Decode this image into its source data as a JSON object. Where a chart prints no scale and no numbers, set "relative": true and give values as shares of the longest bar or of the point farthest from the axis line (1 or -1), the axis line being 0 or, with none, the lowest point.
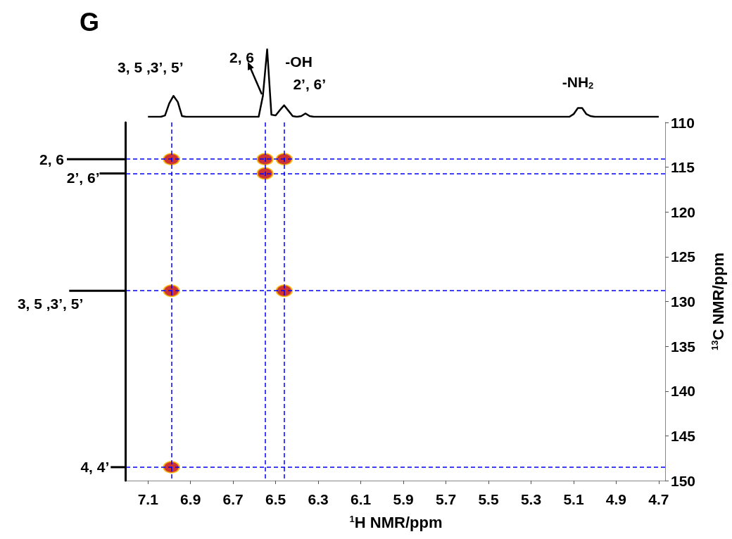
{
  "chart_data": [
    {
      "type": "line",
      "title": "G",
      "relative": true,
      "color": "#000000",
      "marker": "none",
      "categories": [
        null,
        null,
        null,
        null,
        null,
        null,
        null,
        null,
        null,
        null,
        null,
        null,
        null,
        null,
        null,
        null,
        null,
        null,
        null,
        null,
        null,
        null,
        null,
        null,
        null,
        null,
        null,
        null,
        null,
        null,
        null,
        null,
        null,
        null,
        null,
        null,
        null,
        null,
        null,
        null,
        null,
        null,
        null,
        null,
        null,
        null,
        null,
        null,
        null,
        null,
        null,
        null,
        null,
        null,
        null,
        null,
        null,
        null,
        null,
        null,
        null,
        null,
        null,
        null,
        null,
        null,
        null,
        null,
        null,
        null,
        null,
        null,
        null,
        null,
        null,
        null,
        null,
        null,
        null,
        null,
        null,
        null,
        null,
        null,
        null,
        null,
        null,
        null,
        null,
        null,
        null,
        null,
        null,
        null,
        null,
        null,
        null,
        null,
        null,
        null,
        null,
        null,
        null,
        null,
        null,
        null,
        null,
        null,
        null,
        null,
        null,
        null,
        null,
        null,
        null,
        null,
        null,
        null,
        null,
        null,
        null
      ],
      "values": [
        0,
        0,
        0,
        0,
        0.02,
        0.2,
        0.31,
        0.22,
        0.01,
        0,
        0,
        0,
        0,
        0,
        0,
        0,
        0,
        0,
        0,
        0,
        0,
        0,
        0,
        0,
        0,
        0,
        0,
        0.31,
        1,
        0.03,
        0.02,
        0.1,
        0.17,
        0.09,
        0.01,
        0,
        0.01,
        0.05,
        0.01,
        0,
        0,
        0,
        0,
        0,
        0,
        0,
        0,
        0,
        0,
        0,
        0,
        0,
        0,
        0,
        0,
        0,
        0,
        0,
        0,
        0,
        0,
        0,
        0,
        0,
        0,
        0,
        0,
        0,
        0,
        0,
        0,
        0,
        0,
        0,
        0,
        0,
        0,
        0,
        0,
        0,
        0,
        0,
        0,
        0,
        0,
        0,
        0,
        0,
        0,
        0,
        0,
        0,
        0,
        0,
        0,
        0,
        0,
        0,
        0,
        0,
        0.04,
        0.13,
        0.13,
        0.04,
        0.01,
        0,
        0,
        0,
        0,
        0,
        0,
        0,
        0,
        0,
        0,
        0,
        0,
        0,
        0,
        0,
        0
      ],
      "annotations": [
        "3, 5 ,3’, 5’",
        "2, 6",
        "-OH",
        "2’, 6’",
        "-NH$_{2}$"
      ]
    },
    {
      "type": "scatter",
      "color": "#c00000",
      "marker": "circle",
      "xlabel": "$^{1}$H NMR/ppm",
      "ylabel": "$^{13}$C NMR/ppm",
      "xlim": [
        7.2,
        4.67
      ],
      "xticks": [
        7.1,
        6.9,
        6.7,
        6.5,
        6.3,
        6.1,
        5.9,
        5.7,
        5.5,
        5.3,
        5.1,
        4.9,
        4.7
      ],
      "ylim": [
        150,
        110
      ],
      "yticks": [
        110,
        115,
        120,
        125,
        130,
        135,
        140,
        145,
        150
      ],
      "x": [
        6.99,
        6.55,
        6.46,
        6.55,
        6.99,
        6.46,
        6.99
      ],
      "values": [
        114.1,
        114.1,
        114.1,
        115.7,
        128.8,
        128.8,
        148.5
      ],
      "ref_lines": [
        {
          "axis": "x",
          "value": 6.99,
          "color": "#0000ff",
          "line_style": "dashed"
        },
        {
          "axis": "x",
          "value": 6.55,
          "color": "#0000ff",
          "line_style": "dashed"
        },
        {
          "axis": "x",
          "value": 6.46,
          "color": "#0000ff",
          "line_style": "dashed"
        },
        {
          "axis": "y",
          "value": 114.1,
          "color": "#0000ff",
          "line_style": "dashed"
        },
        {
          "axis": "y",
          "value": 115.7,
          "color": "#0000ff",
          "line_style": "dashed"
        },
        {
          "axis": "y",
          "value": 128.8,
          "color": "#0000ff",
          "line_style": "dashed"
        },
        {
          "axis": "y",
          "value": 148.5,
          "color": "#0000ff",
          "line_style": "dashed"
        }
      ]
    },
    {
      "type": "bar",
      "orientation": "horizontal",
      "relative": true,
      "color": "#000000",
      "ylim": [
        150,
        110
      ],
      "x": [
        114.1,
        115.7,
        128.8,
        148.5
      ],
      "values": [
        1,
        0.44,
        0.96,
        0.25
      ],
      "annotations": [
        {
          "text": "2, 6",
          "x": 1,
          "y": 114.1
        },
        {
          "text": "2’, 6’",
          "x": 0.44,
          "y": 115.7
        },
        {
          "text": "3, 5 ,3’, 5’",
          "x": 0.96,
          "y": 128.8
        },
        {
          "text": "4, 4’",
          "x": 0.25,
          "y": 148.5
        }
      ]
    }
  ]
}
